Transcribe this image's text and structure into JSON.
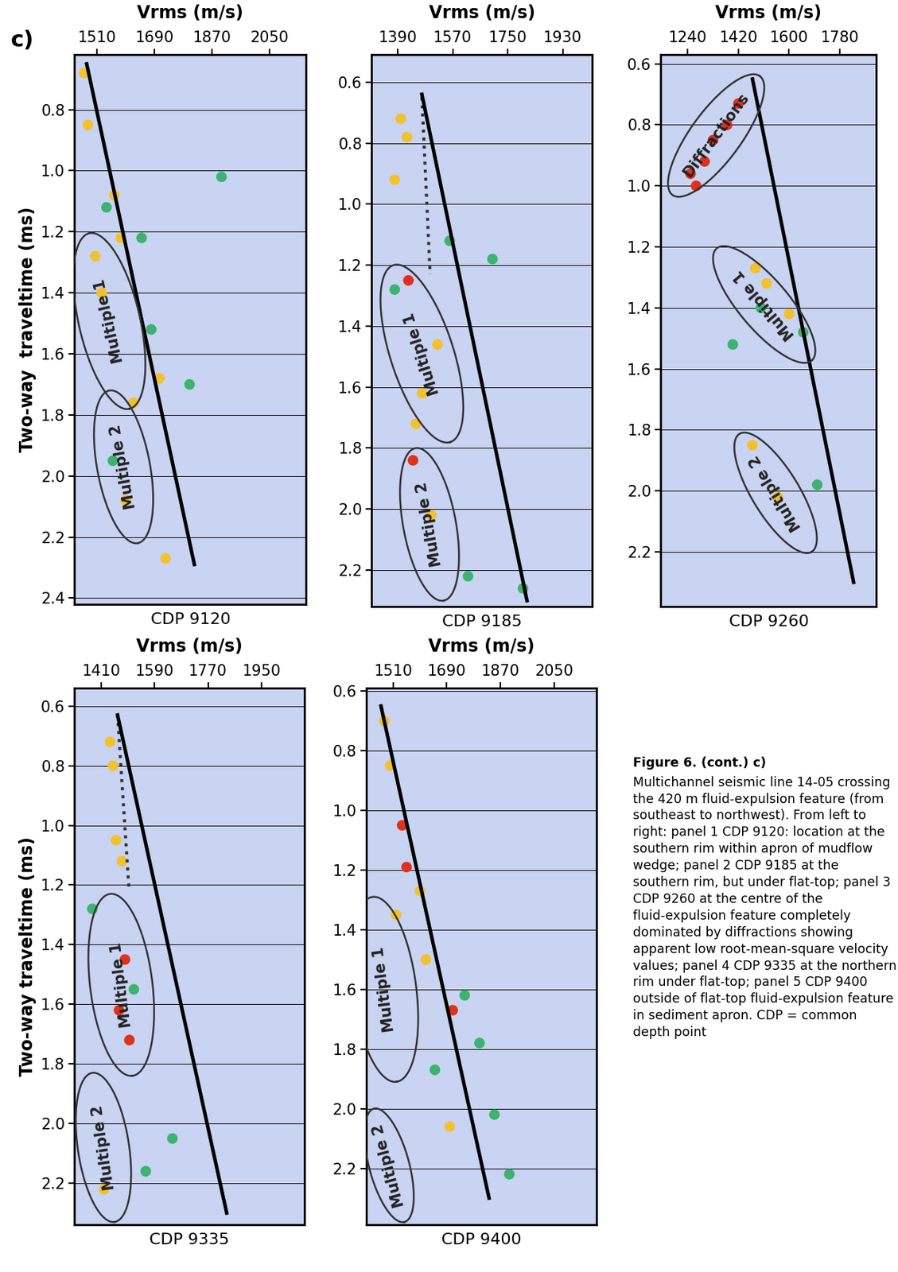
{
  "label": "c)",
  "caption_heading": "Figure 6. (cont.) c)",
  "caption": "Multichannel seismic line 14-05 crossing the 420 m fluid-expulsion feature (from southeast to northwest). From left to right: panel 1 CDP 9120: location at the southern rim within apron of mudflow wedge; panel 2 CDP 9185 at the southern rim, but under flat-top; panel 3 CDP 9260 at the centre of the fluid-expulsion feature completely dominated by diffractions showing apparent low root-mean-square velocity values; panel 4 CDP 9335 at the northern rim under flat-top; panel 5 CDP 9400 outside of flat-top fluid-expulsion feature in sediment apron. CDP = common depth point",
  "chart_data": [
    {
      "type": "line",
      "title": "Vrms (m/s)",
      "xlabel": "CDP 9120",
      "ylabel": "Two-way  traveltime (ms)",
      "xlim": [
        1440,
        2165
      ],
      "xticks": [
        1510,
        1690,
        1870,
        2050
      ],
      "ylim": [
        2.42,
        0.62
      ],
      "yticks": [
        0.8,
        1.0,
        1.2,
        1.4,
        1.6,
        1.8,
        2.0,
        2.2,
        2.4
      ],
      "grid": true,
      "series": [
        {
          "type": "scatter",
          "marker": "o",
          "color": "#3cb371",
          "x": [
            1540,
            1650,
            1800,
            1560,
            1900,
            1680
          ],
          "y": [
            1.12,
            1.22,
            1.7,
            1.95,
            1.02,
            1.52
          ]
        },
        {
          "type": "scatter",
          "marker": "o",
          "color": "#f2c12e",
          "x": [
            1470,
            1482,
            1565,
            1585,
            1505,
            1705,
            1525,
            1625,
            1600,
            1725
          ],
          "y": [
            0.68,
            0.85,
            1.08,
            1.22,
            1.28,
            1.68,
            1.4,
            1.76,
            2.08,
            2.27
          ]
        },
        {
          "type": "line",
          "line_style": "solid",
          "color": "#000000",
          "x": [
            1478,
            1815
          ],
          "y": [
            0.65,
            2.29
          ]
        }
      ],
      "regions": [
        {
          "label": "Multiple 1",
          "from": [
            1486,
            1.205
          ],
          "to": [
            1612,
            1.78
          ]
        },
        {
          "label": "Multiple 2",
          "from": [
            1549,
            1.72
          ],
          "to": [
            1638,
            2.22
          ]
        }
      ]
    },
    {
      "type": "line",
      "title": "Vrms (m/s)",
      "xlabel": "CDP 9185",
      "xlim": [
        1305,
        2025
      ],
      "xticks": [
        1390,
        1570,
        1750,
        1930
      ],
      "ylim": [
        2.32,
        0.51
      ],
      "yticks": [
        0.6,
        0.8,
        1.0,
        1.2,
        1.4,
        1.6,
        1.8,
        2.0,
        2.2
      ],
      "grid": true,
      "series": [
        {
          "type": "scatter",
          "marker": "o",
          "color": "#3cb371",
          "x": [
            1560,
            1700,
            1800,
            1380,
            1620
          ],
          "y": [
            1.12,
            1.18,
            2.26,
            1.28,
            2.22
          ]
        },
        {
          "type": "scatter",
          "marker": "o",
          "color": "#f2c12e",
          "x": [
            1400,
            1420,
            1380,
            1470,
            1450,
            1520,
            1500
          ],
          "y": [
            0.72,
            0.78,
            0.92,
            1.62,
            1.72,
            1.46,
            2.02
          ]
        },
        {
          "type": "scatter",
          "marker": "o",
          "color": "#e0301e",
          "x": [
            1425,
            1440
          ],
          "y": [
            1.25,
            1.84
          ]
        },
        {
          "type": "line",
          "line_style": "dotted",
          "color": "#333333",
          "x": [
            1469,
            1496
          ],
          "y": [
            0.65,
            1.23
          ]
        },
        {
          "type": "line",
          "line_style": "solid",
          "color": "#000000",
          "x": [
            1469,
            1813
          ],
          "y": [
            0.64,
            2.3
          ]
        }
      ],
      "regions": [
        {
          "label": "Multiple 1",
          "from": [
            1376,
            1.2
          ],
          "to": [
            1562,
            1.78
          ]
        },
        {
          "label": "Multiple 2",
          "from": [
            1448,
            1.8
          ],
          "to": [
            1540,
            2.3
          ]
        }
      ]
    },
    {
      "type": "line",
      "title": "Vrms (m/s)",
      "xlabel": "CDP 9260",
      "xlim": [
        1145,
        1910
      ],
      "xticks": [
        1240,
        1420,
        1600,
        1780
      ],
      "ylim": [
        2.38,
        0.57
      ],
      "yticks": [
        0.6,
        0.8,
        1.0,
        1.2,
        1.4,
        1.6,
        1.8,
        2.0,
        2.2
      ],
      "grid": true,
      "series": [
        {
          "type": "scatter",
          "marker": "o",
          "color": "#3cb371",
          "x": [
            1400,
            1650,
            1500,
            1700
          ],
          "y": [
            1.52,
            1.48,
            1.4,
            1.98
          ]
        },
        {
          "type": "scatter",
          "marker": "o",
          "color": "#f2c12e",
          "x": [
            1480,
            1520,
            1470,
            1560,
            1600
          ],
          "y": [
            1.27,
            1.32,
            1.85,
            2.02,
            1.42
          ]
        },
        {
          "type": "scatter",
          "marker": "o",
          "color": "#e0301e",
          "x": [
            1270,
            1300,
            1330,
            1420,
            1380,
            1250
          ],
          "y": [
            1.0,
            0.92,
            0.85,
            0.73,
            0.8,
            0.96
          ]
        },
        {
          "type": "line",
          "line_style": "solid",
          "color": "#000000",
          "x": [
            1470,
            1829
          ],
          "y": [
            0.65,
            2.3
          ]
        }
      ],
      "regions": [
        {
          "label": "Diffractions",
          "from": [
            1186,
            1.03
          ],
          "to": [
            1496,
            0.64
          ]
        },
        {
          "label": "Multiple 1",
          "from": [
            1343,
            1.205
          ],
          "to": [
            1680,
            1.573
          ]
        },
        {
          "label": "Multiple 2",
          "from": [
            1424,
            1.813
          ],
          "to": [
            1680,
            2.2
          ]
        }
      ]
    },
    {
      "type": "line",
      "title": "Vrms (m/s)",
      "xlabel": "CDP 9335",
      "ylabel": "Two-way traveltime (ms)",
      "xlim": [
        1320,
        2095
      ],
      "xticks": [
        1410,
        1590,
        1770,
        1950
      ],
      "ylim": [
        2.34,
        0.54
      ],
      "yticks": [
        0.6,
        0.8,
        1.0,
        1.2,
        1.4,
        1.6,
        1.8,
        2.0,
        2.2
      ],
      "grid": true,
      "series": [
        {
          "type": "scatter",
          "marker": "o",
          "color": "#3cb371",
          "x": [
            1380,
            1520,
            1560,
            1650
          ],
          "y": [
            1.28,
            1.55,
            2.16,
            2.05
          ]
        },
        {
          "type": "scatter",
          "marker": "o",
          "color": "#f2c12e",
          "x": [
            1440,
            1450,
            1460,
            1480,
            1420
          ],
          "y": [
            0.72,
            0.8,
            1.05,
            1.12,
            2.22
          ]
        },
        {
          "type": "scatter",
          "marker": "o",
          "color": "#e0301e",
          "x": [
            1470,
            1505,
            1490
          ],
          "y": [
            1.62,
            1.72,
            1.45
          ]
        },
        {
          "type": "line",
          "line_style": "dotted",
          "color": "#333333",
          "x": [
            1465,
            1504
          ],
          "y": [
            0.63,
            1.22
          ]
        },
        {
          "type": "line",
          "line_style": "solid",
          "color": "#000000",
          "x": [
            1465,
            1833
          ],
          "y": [
            0.63,
            2.3
          ]
        }
      ],
      "regions": [
        {
          "label": "Multiple 1",
          "from": [
            1440,
            1.23
          ],
          "to": [
            1515,
            1.84
          ]
        },
        {
          "label": "Multiple 2",
          "from": [
            1380,
            1.83
          ],
          "to": [
            1455,
            2.33
          ]
        }
      ]
    },
    {
      "type": "line",
      "title": "Vrms (m/s)",
      "xlabel": "CDP 9400",
      "xlim": [
        1420,
        2192
      ],
      "xticks": [
        1510,
        1690,
        1870,
        2050
      ],
      "ylim": [
        2.39,
        0.59
      ],
      "yticks": [
        0.6,
        0.8,
        1.0,
        1.2,
        1.4,
        1.6,
        1.8,
        2.0,
        2.2
      ],
      "grid": true,
      "series": [
        {
          "type": "scatter",
          "marker": "o",
          "color": "#3cb371",
          "x": [
            1800,
            1850,
            1900,
            1650,
            1750
          ],
          "y": [
            1.78,
            2.02,
            2.22,
            1.87,
            1.62
          ]
        },
        {
          "type": "scatter",
          "marker": "o",
          "color": "#f2c12e",
          "x": [
            1480,
            1500,
            1620,
            1600,
            1700,
            1520
          ],
          "y": [
            0.7,
            0.85,
            1.5,
            1.27,
            2.06,
            1.35
          ]
        },
        {
          "type": "scatter",
          "marker": "o",
          "color": "#e0301e",
          "x": [
            1710,
            1555,
            1540
          ],
          "y": [
            1.67,
            1.19,
            1.05
          ]
        },
        {
          "type": "line",
          "line_style": "solid",
          "color": "#000000",
          "x": [
            1469,
            1832
          ],
          "y": [
            0.65,
            2.3
          ]
        }
      ],
      "regions": [
        {
          "label": "Multiple 1",
          "from": [
            1441,
            1.29
          ],
          "to": [
            1521,
            1.91
          ]
        },
        {
          "label": "Multiple 2",
          "from": [
            1445,
            2.0
          ],
          "to": [
            1548,
            2.38
          ]
        }
      ]
    }
  ]
}
